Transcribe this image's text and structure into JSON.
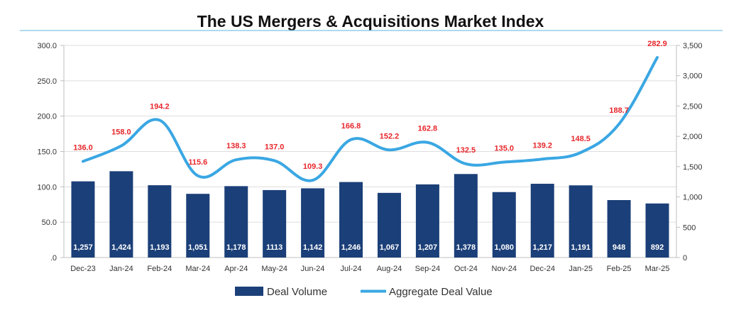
{
  "chart_data": {
    "type": "bar",
    "title": "The US Mergers & Acquisitions Market Index",
    "categories": [
      "Dec-23",
      "Jan-24",
      "Feb-24",
      "Mar-24",
      "Apr-24",
      "May-24",
      "Jun-24",
      "Jul-24",
      "Aug-24",
      "Sep-24",
      "Oct-24",
      "Nov-24",
      "Dec-24",
      "Jan-25",
      "Feb-25",
      "Mar-25"
    ],
    "series": [
      {
        "name": "Deal Volume",
        "type": "bar",
        "axis": "right",
        "color": "#1b3f78",
        "values": [
          1257,
          1424,
          1193,
          1051,
          1178,
          1113,
          1142,
          1246,
          1067,
          1207,
          1378,
          1080,
          1217,
          1191,
          948,
          892
        ],
        "labels": [
          "1,257",
          "1,424",
          "1,193",
          "1,051",
          "1,178",
          "1113",
          "1,142",
          "1,246",
          "1,067",
          "1,207",
          "1,378",
          "1,080",
          "1,217",
          "1,191",
          "948",
          "892"
        ]
      },
      {
        "name": "Aggregate Deal Value",
        "type": "line",
        "axis": "left",
        "color": "#3aa7e3",
        "values": [
          136.0,
          158.0,
          194.2,
          115.6,
          138.3,
          137.0,
          109.3,
          166.8,
          152.2,
          162.8,
          132.5,
          135.0,
          139.2,
          148.5,
          188.7,
          282.9
        ],
        "labels": [
          "136.0",
          "158.0",
          "194.2",
          "115.6",
          "138.3",
          "137.0",
          "109.3",
          "166.8",
          "152.2",
          "162.8",
          "132.5",
          "135.0",
          "139.2",
          "148.5",
          "188.7",
          "282.9"
        ],
        "label_color": "#e8262b"
      }
    ],
    "y_left": {
      "ylim": [
        0,
        300
      ],
      "ticks": [
        ".0",
        "50.0",
        "100.0",
        "150.0",
        "200.0",
        "250.0",
        "300.0"
      ]
    },
    "y_right": {
      "ylim": [
        0,
        3500
      ],
      "ticks": [
        "0",
        "500",
        "1,000",
        "1,500",
        "2,000",
        "2,500",
        "3,000",
        "3,500"
      ]
    },
    "grid": "horizontal",
    "legend_position": "bottom-center",
    "legend": [
      {
        "label": "Deal Volume",
        "swatch": "bar"
      },
      {
        "label": "Aggregate Deal Value",
        "swatch": "line"
      }
    ]
  }
}
